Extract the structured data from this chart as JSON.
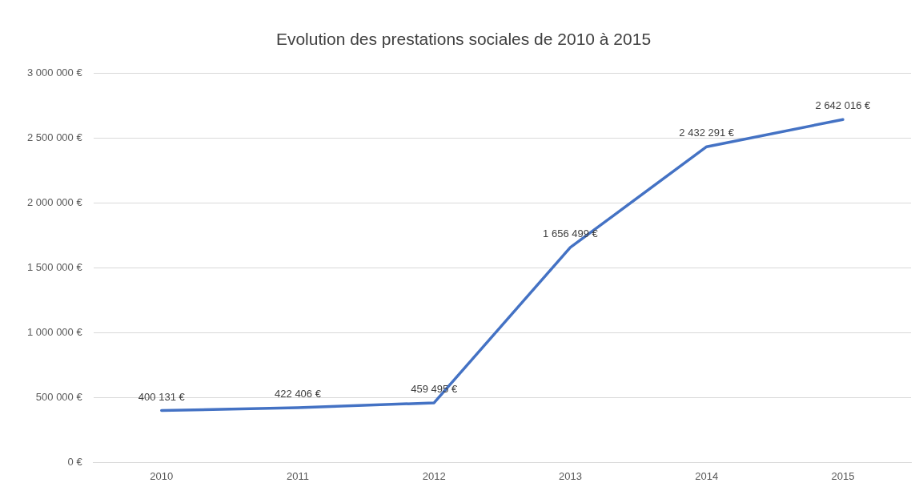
{
  "chart_data": {
    "type": "line",
    "title": "Evolution des prestations sociales de 2010 à 2015",
    "categories": [
      "2010",
      "2011",
      "2012",
      "2013",
      "2014",
      "2015"
    ],
    "series": [
      {
        "color": "#4472c4",
        "values": [
          400131,
          422406,
          459495,
          1656499,
          2432291,
          2642016
        ],
        "value_labels": [
          "400 131 €",
          "422 406 €",
          "459 495 €",
          "1 656 499 €",
          "2 432 291 €",
          "2 642 016 €"
        ]
      }
    ],
    "ylim": [
      0,
      3000000
    ],
    "yticks": [
      {
        "value": 0,
        "label": "0 €"
      },
      {
        "value": 500000,
        "label": "500 000 €"
      },
      {
        "value": 1000000,
        "label": "1 000 000 €"
      },
      {
        "value": 1500000,
        "label": "1 500 000 €"
      },
      {
        "value": 2000000,
        "label": "2 000 000 €"
      },
      {
        "value": 2500000,
        "label": "2 500 000 €"
      },
      {
        "value": 3000000,
        "label": "3 000 000 €"
      }
    ],
    "grid": "y",
    "legend": false,
    "marker": "none",
    "line_style": "solid"
  }
}
